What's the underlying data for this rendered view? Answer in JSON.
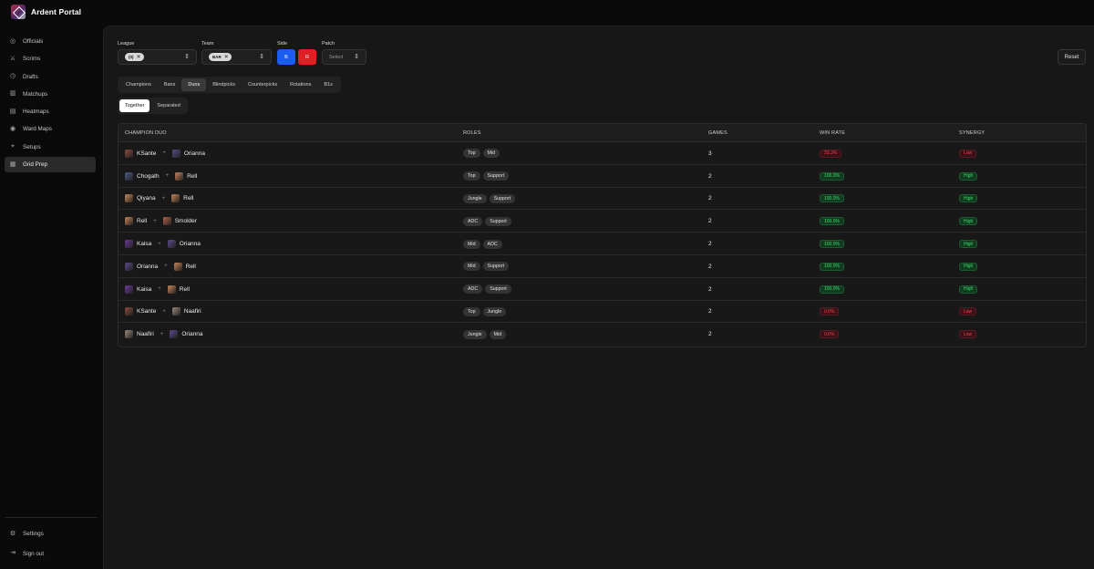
{
  "app": {
    "name": "Ardent Portal"
  },
  "sidebar": {
    "items": [
      {
        "label": "Officials",
        "icon": "globe-icon",
        "glyph": "◎",
        "active": false
      },
      {
        "label": "Scrims",
        "icon": "swords-icon",
        "glyph": "⚔",
        "active": false
      },
      {
        "label": "Drafts",
        "icon": "clock-icon",
        "glyph": "◷",
        "active": false
      },
      {
        "label": "Matchups",
        "icon": "chart-icon",
        "glyph": "▥",
        "active": false
      },
      {
        "label": "Heatmaps",
        "icon": "layers-icon",
        "glyph": "▤",
        "active": false
      },
      {
        "label": "Ward Maps",
        "icon": "eye-icon",
        "glyph": "◉",
        "active": false
      },
      {
        "label": "Setups",
        "icon": "setup-icon",
        "glyph": "⌖",
        "active": false
      },
      {
        "label": "Grid Prep",
        "icon": "grid-icon",
        "glyph": "▦",
        "active": true
      }
    ],
    "bottom": [
      {
        "label": "Settings",
        "icon": "gear-icon",
        "glyph": "⚙"
      },
      {
        "label": "Sign out",
        "icon": "sign-out-icon",
        "glyph": "⇥"
      }
    ]
  },
  "filters": {
    "league_label": "League",
    "league_chip": "(0)",
    "team_label": "Team",
    "team_chip": "BAR",
    "side_label": "Side",
    "side_blue": "B",
    "side_red": "R",
    "patch_label": "Patch",
    "patch_placeholder": "Select",
    "reset_label": "Reset"
  },
  "tabs": [
    {
      "label": "Champions",
      "active": false
    },
    {
      "label": "Bans",
      "active": false
    },
    {
      "label": "Duos",
      "active": true
    },
    {
      "label": "Blindpicks",
      "active": false
    },
    {
      "label": "Counterpicks",
      "active": false
    },
    {
      "label": "Rotations",
      "active": false
    },
    {
      "label": "B1s",
      "active": false
    }
  ],
  "subtabs": [
    {
      "label": "Together",
      "active": true
    },
    {
      "label": "Separated",
      "active": false
    }
  ],
  "table": {
    "headers": {
      "duo": "CHAMPION DUO",
      "roles": "ROLES",
      "games": "GAMES",
      "win_rate": "WIN RATE",
      "synergy": "SYNERGY"
    },
    "rows": [
      {
        "champ1": "KSante",
        "c1": "#8a4a3a",
        "champ2": "Orianna",
        "c2": "#5a4a8a",
        "roles": [
          "Top",
          "Mid"
        ],
        "games": "3",
        "win_rate": "33.3%",
        "win_good": false,
        "synergy": "Low"
      },
      {
        "champ1": "Chogath",
        "c1": "#4a5a8a",
        "champ2": "Rell",
        "c2": "#c8845a",
        "roles": [
          "Top",
          "Support"
        ],
        "games": "2",
        "win_rate": "100.0%",
        "win_good": true,
        "synergy": "High"
      },
      {
        "champ1": "Qiyana",
        "c1": "#c88a5a",
        "champ2": "Rell",
        "c2": "#c8845a",
        "roles": [
          "Jungle",
          "Support"
        ],
        "games": "2",
        "win_rate": "100.0%",
        "win_good": true,
        "synergy": "High"
      },
      {
        "champ1": "Rell",
        "c1": "#c8845a",
        "champ2": "Smolder",
        "c2": "#b4644a",
        "roles": [
          "ADC",
          "Support"
        ],
        "games": "2",
        "win_rate": "100.0%",
        "win_good": true,
        "synergy": "High"
      },
      {
        "champ1": "Kaisa",
        "c1": "#6a3a9a",
        "champ2": "Orianna",
        "c2": "#5a4a8a",
        "roles": [
          "Mid",
          "ADC"
        ],
        "games": "2",
        "win_rate": "100.0%",
        "win_good": true,
        "synergy": "High"
      },
      {
        "champ1": "Orianna",
        "c1": "#5a4a8a",
        "champ2": "Rell",
        "c2": "#c8845a",
        "roles": [
          "Mid",
          "Support"
        ],
        "games": "2",
        "win_rate": "100.0%",
        "win_good": true,
        "synergy": "High"
      },
      {
        "champ1": "Kaisa",
        "c1": "#6a3a9a",
        "champ2": "Rell",
        "c2": "#c8845a",
        "roles": [
          "ADC",
          "Support"
        ],
        "games": "2",
        "win_rate": "100.0%",
        "win_good": true,
        "synergy": "High"
      },
      {
        "champ1": "KSante",
        "c1": "#8a4a3a",
        "champ2": "Naafiri",
        "c2": "#9a8a7a",
        "roles": [
          "Top",
          "Jungle"
        ],
        "games": "2",
        "win_rate": "0.0%",
        "win_good": false,
        "synergy": "Low"
      },
      {
        "champ1": "Naafiri",
        "c1": "#9a8a7a",
        "champ2": "Orianna",
        "c2": "#5a4a8a",
        "roles": [
          "Jungle",
          "Mid"
        ],
        "games": "2",
        "win_rate": "0.0%",
        "win_good": false,
        "synergy": "Low"
      }
    ]
  }
}
